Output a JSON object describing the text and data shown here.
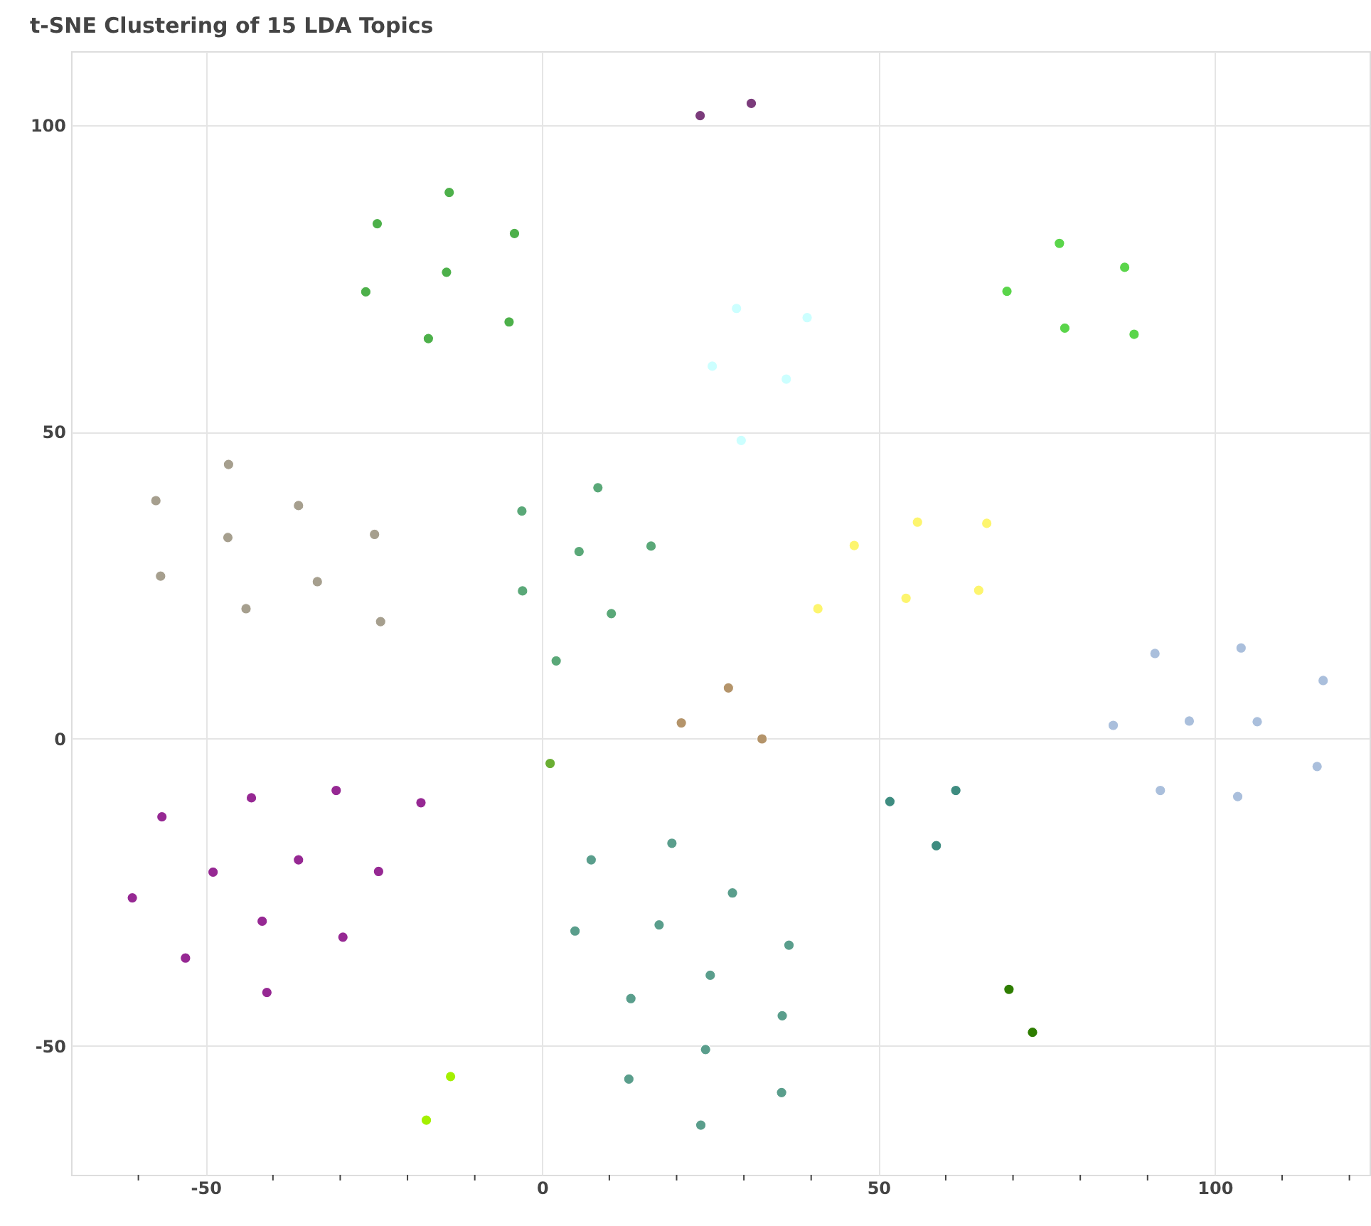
{
  "chart_data": {
    "type": "scatter",
    "title": "t-SNE Clustering of 15 LDA Topics",
    "xlim": [
      -70,
      123
    ],
    "ylim": [
      -71,
      112
    ],
    "xticks": [
      {
        "value": -60,
        "label": null
      },
      -50,
      {
        "value": -40,
        "label": null
      },
      {
        "value": -30,
        "label": null
      },
      {
        "value": -20,
        "label": null
      },
      {
        "value": -10,
        "label": null
      },
      0,
      {
        "value": 10,
        "label": null
      },
      {
        "value": 20,
        "label": null
      },
      {
        "value": 30,
        "label": null
      },
      {
        "value": 40,
        "label": null
      },
      50,
      {
        "value": 60,
        "label": null
      },
      {
        "value": 70,
        "label": null
      },
      {
        "value": 80,
        "label": null
      },
      {
        "value": 90,
        "label": null
      },
      100,
      {
        "value": 110,
        "label": null
      },
      {
        "value": 120,
        "label": null
      }
    ],
    "yticks": [
      -50,
      0,
      50,
      100
    ],
    "grid": true,
    "marker": "circle",
    "series": [
      {
        "color": "#7b3b7b",
        "x": [
          23.5,
          31.1
        ],
        "values": [
          101.5,
          103.5
        ]
      },
      {
        "color": "#4db04a",
        "x": [
          -13.8,
          -24.5,
          -4.1,
          -14.2,
          -26.2,
          -4.9,
          -16.9
        ],
        "values": [
          89.0,
          83.9,
          82.3,
          76.0,
          72.8,
          67.9,
          65.2
        ]
      },
      {
        "color": "#ccffff",
        "x": [
          28.9,
          39.4,
          25.3,
          36.3,
          29.6
        ],
        "values": [
          70.1,
          68.6,
          60.7,
          58.6,
          48.6
        ]
      },
      {
        "color": "#5ad54a",
        "x": [
          76.9,
          86.6,
          69.1,
          77.7,
          88.0
        ],
        "values": [
          80.7,
          76.8,
          72.9,
          66.9,
          65.9
        ]
      },
      {
        "color": "#a69f8e",
        "x": [
          -57.4,
          -46.6,
          -36.2,
          -46.7,
          -24.9,
          -56.7,
          -33.4,
          -44.0,
          -24.0
        ],
        "values": [
          38.8,
          44.7,
          38.0,
          32.8,
          33.3,
          26.5,
          25.6,
          21.2,
          19.1
        ]
      },
      {
        "color": "#5aa878",
        "x": [
          -3.0,
          8.3,
          5.5,
          16.2,
          -2.9,
          10.3,
          2.1
        ],
        "values": [
          37.1,
          40.9,
          30.5,
          31.4,
          24.1,
          20.4,
          12.7
        ]
      },
      {
        "color": "#b4946a",
        "x": [
          20.7,
          27.7,
          32.7
        ],
        "values": [
          2.6,
          8.3,
          0.0
        ]
      },
      {
        "color": "#6aae32",
        "x": [
          1.2
        ],
        "values": [
          -4.0
        ]
      },
      {
        "color": "#962893",
        "x": [
          -56.5,
          -43.2,
          -30.6,
          -18.0,
          -60.9,
          -48.9,
          -36.2,
          -24.3,
          -41.6,
          -29.6,
          -53.0,
          -40.9
        ],
        "values": [
          -12.7,
          -9.6,
          -8.4,
          -10.4,
          -25.9,
          -21.7,
          -19.7,
          -21.6,
          -29.7,
          -32.3,
          -35.7,
          -41.3
        ]
      },
      {
        "color": "#a4f000",
        "x": [
          -13.6,
          -17.2
        ],
        "values": [
          -55.0,
          -62.1
        ]
      },
      {
        "color": "#5a9e8c",
        "x": [
          7.3,
          19.3,
          4.9,
          17.4,
          25.0,
          13.2,
          24.3,
          12.9,
          23.6,
          28.3,
          36.7,
          35.7,
          35.6
        ],
        "values": [
          -19.7,
          -17.0,
          -31.3,
          -30.3,
          -38.5,
          -42.3,
          -50.6,
          -55.4,
          -62.9,
          -25.1,
          -33.6,
          -45.1,
          -57.6
        ]
      },
      {
        "color": "#3e8c80",
        "x": [
          51.7,
          61.5,
          58.6
        ],
        "values": [
          -10.2,
          -8.4,
          -17.4
        ]
      },
      {
        "color": "#2e7d00",
        "x": [
          69.4,
          72.9
        ],
        "values": [
          -40.8,
          -47.8
        ]
      },
      {
        "color": "#aabfdc",
        "x": [
          91.1,
          103.9,
          116.1,
          84.9,
          96.2,
          106.3,
          115.2,
          91.9,
          103.4
        ],
        "values": [
          13.9,
          14.8,
          9.5,
          2.2,
          2.9,
          2.8,
          -4.5,
          -8.4,
          -9.4
        ]
      },
      {
        "color": "#fdf56e",
        "x": [
          55.8,
          66.1,
          46.4,
          41.0,
          54.1,
          64.9
        ],
        "values": [
          35.3,
          35.1,
          31.5,
          21.2,
          22.9,
          24.2
        ]
      }
    ]
  }
}
